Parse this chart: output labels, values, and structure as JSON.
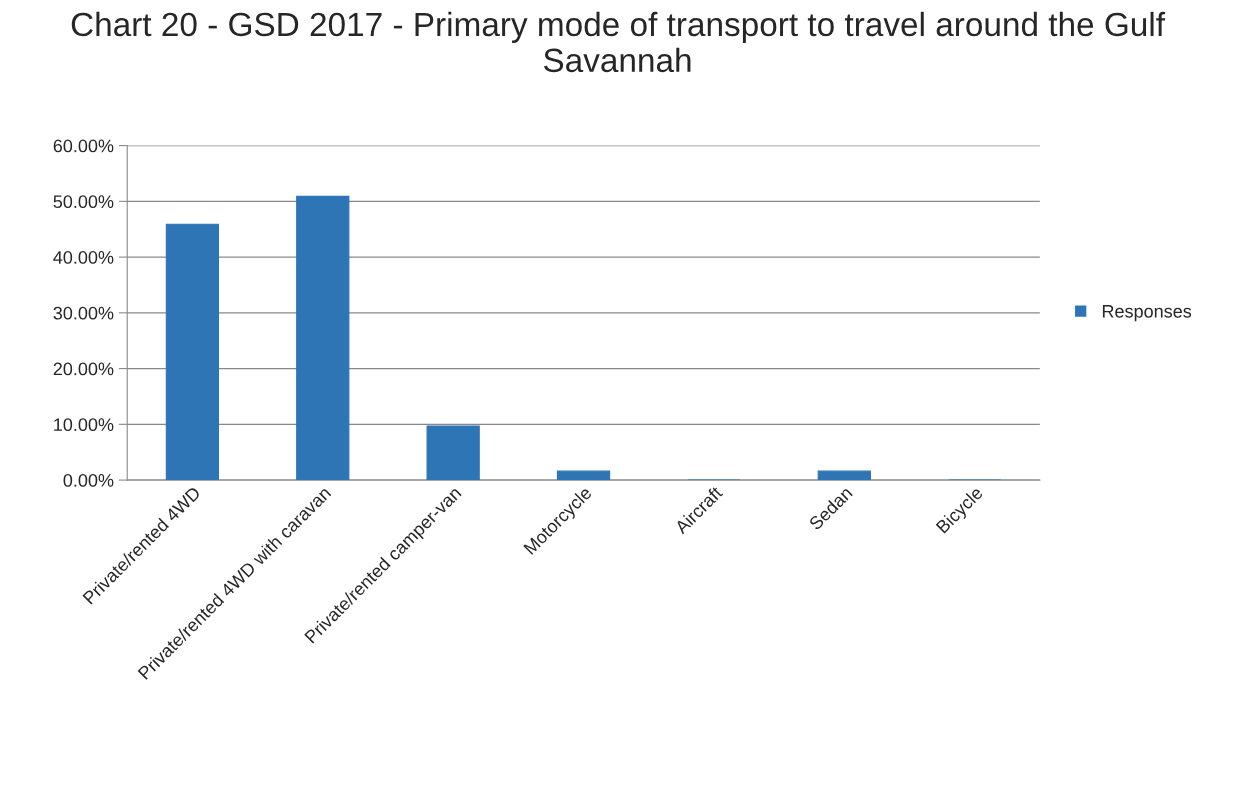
{
  "chart_data": {
    "type": "bar",
    "title": "Chart 20 - GSD 2017 - Primary mode of transport to travel around the Gulf Savannah",
    "categories": [
      "Private/rented 4WD",
      "Private/rented 4WD with caravan",
      "Private/rented camper-van",
      "Motorcycle",
      "Aircraft",
      "Sedan",
      "Bicycle"
    ],
    "series": [
      {
        "name": "Responses",
        "color": "#2e75b6",
        "values": [
          45.9,
          50.9,
          9.7,
          1.6,
          0,
          1.6,
          0
        ]
      }
    ],
    "ylim": [
      0,
      60
    ],
    "yticks": [
      {
        "value": 0,
        "label": "0.00%"
      },
      {
        "value": 10,
        "label": "10.00%"
      },
      {
        "value": 20,
        "label": "20.00%"
      },
      {
        "value": 30,
        "label": "30.00%"
      },
      {
        "value": 40,
        "label": "40.00%"
      },
      {
        "value": 50,
        "label": "50.00%"
      },
      {
        "value": 60,
        "label": "60.00%"
      }
    ],
    "grid": "y",
    "legend": "right"
  }
}
